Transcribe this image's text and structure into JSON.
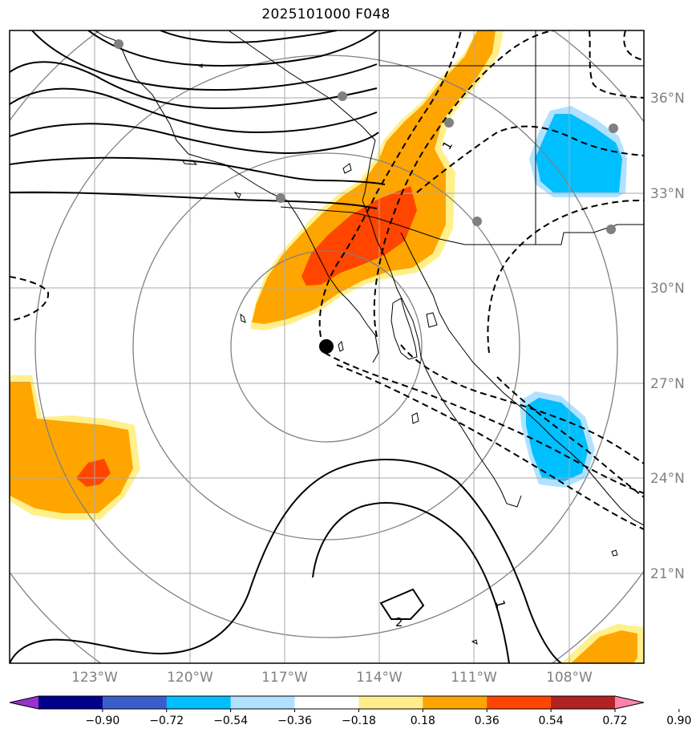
{
  "title": "2025101000 F048",
  "map": {
    "latitude_labels": [
      "36°N",
      "33°N",
      "30°N",
      "27°N",
      "24°N",
      "21°N"
    ],
    "longitude_labels": [
      "123°W",
      "120°W",
      "117°W",
      "114°W",
      "111°W",
      "108°W"
    ],
    "contour_labels": [
      "1",
      "1",
      "2"
    ],
    "center_marker": "storm-center"
  },
  "colorbar": {
    "ticks": [
      "−0.90",
      "−0.72",
      "−0.54",
      "−0.36",
      "−0.18",
      "0.18",
      "0.36",
      "0.54",
      "0.72",
      "0.90"
    ],
    "colors": [
      "#9932cc",
      "#00008b",
      "#3a5fcd",
      "#00bfff",
      "#b0e2ff",
      "#ffffff",
      "#ffec8b",
      "#ffa500",
      "#ff4500",
      "#b22222",
      "#ff82ab"
    ]
  },
  "shading_colors": {
    "light_yellow": "#fff08c",
    "orange": "#ffa500",
    "red_orange": "#ff4500",
    "light_blue": "#b0e2ff",
    "deep_sky_blue": "#00bfff"
  }
}
